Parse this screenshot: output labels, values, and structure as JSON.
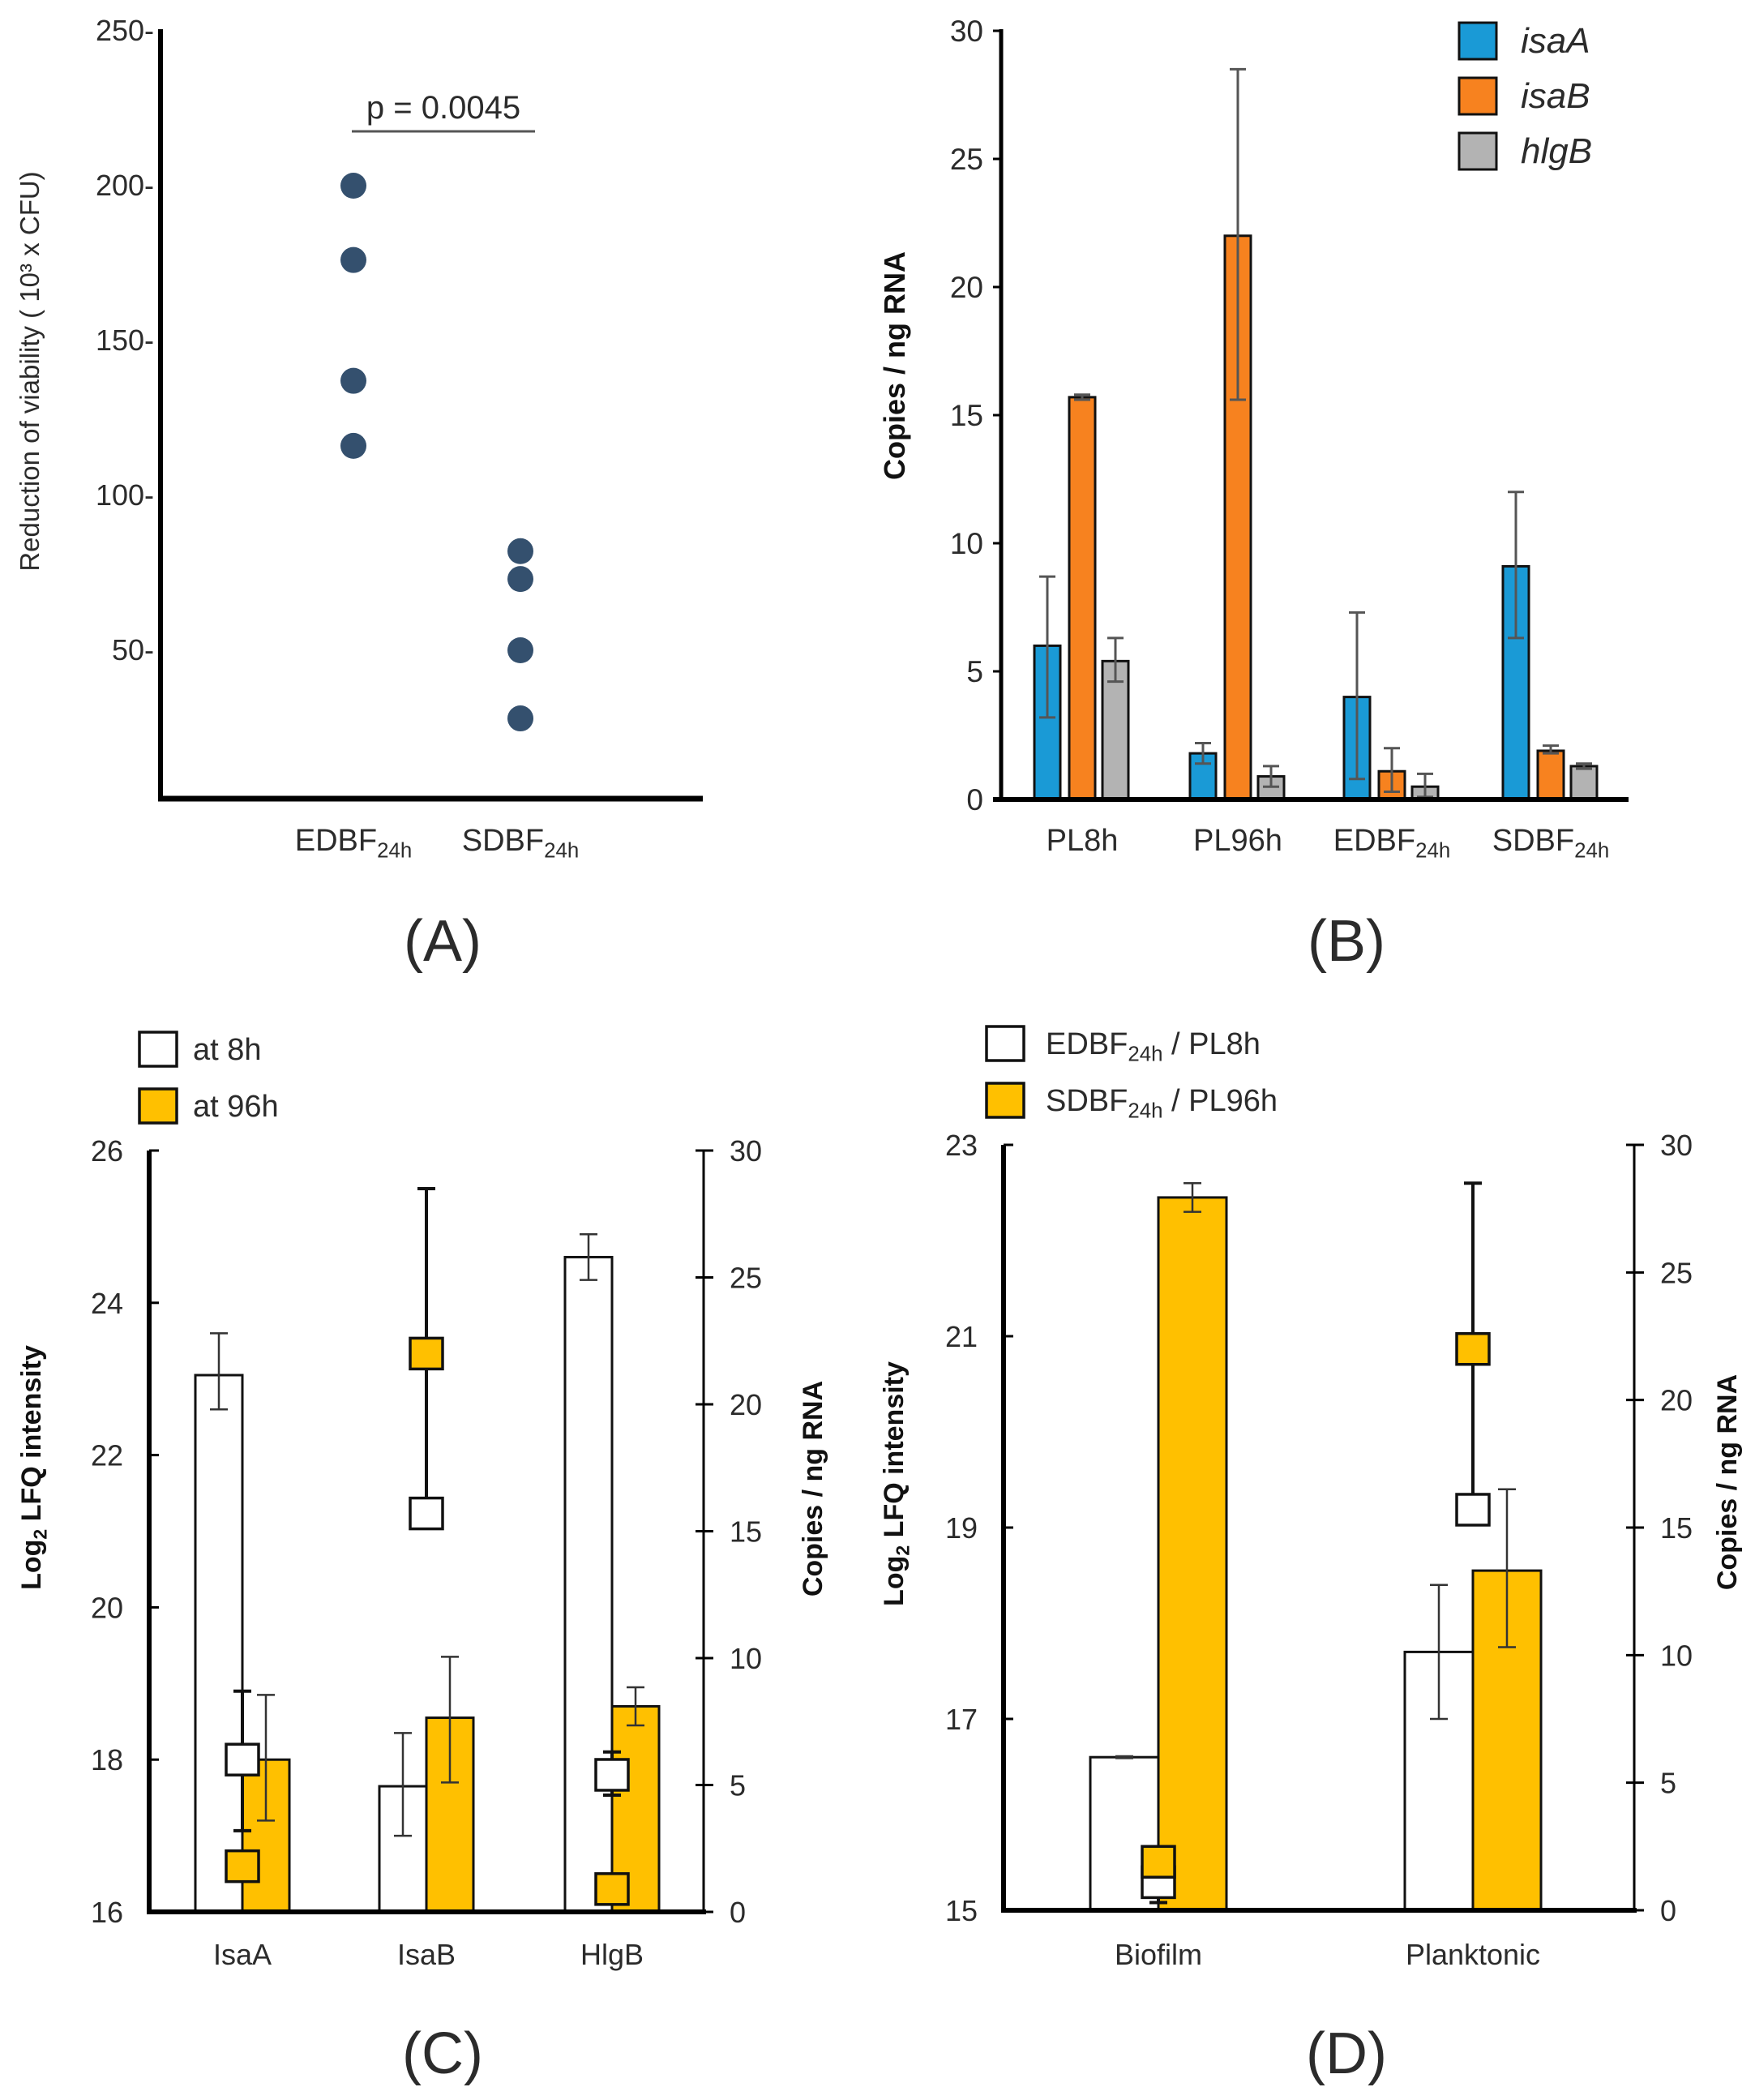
{
  "colors": {
    "dot": "#34506e",
    "isaA": "#1a9ad6",
    "isaB": "#f7821f",
    "hlgB": "#b3b3b3",
    "at8h": "#ffffff",
    "at96h": "#ffc000",
    "axis": "#000000",
    "errorbar": "#555555"
  },
  "chart_data": [
    {
      "id": "A",
      "type": "scatter",
      "panel_label": "(A)",
      "ylabel": [
        {
          "t": "Reduction of viability ( 10³ x CFU)"
        }
      ],
      "ylim": [
        0,
        250
      ],
      "yticks": [
        50,
        100,
        150,
        200,
        250
      ],
      "tick_suffix": "-",
      "categories": [
        [
          {
            "t": "EDBF"
          },
          {
            "t": "24h",
            "sub": true
          }
        ],
        [
          {
            "t": "SDBF"
          },
          {
            "t": "24h",
            "sub": true
          }
        ]
      ],
      "groups": [
        {
          "values": [
            200,
            176,
            137,
            116
          ]
        },
        {
          "values": [
            82,
            73,
            50,
            28
          ]
        }
      ],
      "annotation": {
        "text": "p = 0.0045",
        "between": [
          0,
          1
        ]
      }
    },
    {
      "id": "B",
      "type": "bar",
      "panel_label": "(B)",
      "ylabel": [
        {
          "t": "Copies / ng RNA"
        }
      ],
      "ylim": [
        0,
        30
      ],
      "yticks": [
        0,
        5,
        10,
        15,
        20,
        25,
        30
      ],
      "categories": [
        [
          {
            "t": "PL8h"
          }
        ],
        [
          {
            "t": "PL96h"
          }
        ],
        [
          {
            "t": "EDBF"
          },
          {
            "t": "24h",
            "sub": true
          }
        ],
        [
          {
            "t": "SDBF"
          },
          {
            "t": "24h",
            "sub": true
          }
        ]
      ],
      "legend_position": "top-right",
      "series": [
        {
          "name": "isaA",
          "color_key": "isaA",
          "values": [
            6.0,
            1.8,
            4.0,
            9.1
          ],
          "err": [
            [
              3.2,
              8.7
            ],
            [
              1.4,
              2.2
            ],
            [
              0.8,
              7.3
            ],
            [
              6.3,
              12.0
            ]
          ]
        },
        {
          "name": "isaB",
          "color_key": "isaB",
          "values": [
            15.7,
            22.0,
            1.1,
            1.9
          ],
          "err": [
            [
              15.6,
              15.8
            ],
            [
              15.6,
              28.5
            ],
            [
              0.3,
              2.0
            ],
            [
              1.8,
              2.1
            ]
          ]
        },
        {
          "name": "hlgB",
          "color_key": "hlgB",
          "values": [
            5.4,
            0.9,
            0.5,
            1.3
          ],
          "err": [
            [
              4.6,
              6.3
            ],
            [
              0.5,
              1.3
            ],
            [
              0.1,
              1.0
            ],
            [
              1.2,
              1.4
            ]
          ]
        }
      ]
    },
    {
      "id": "C",
      "type": "bar",
      "panel_label": "(C)",
      "ylabel": [
        {
          "t": "Log"
        },
        {
          "t": "2",
          "sub": true
        },
        {
          "t": " LFQ intensity"
        }
      ],
      "ylabel_right": [
        {
          "t": "Copies / ng RNA"
        }
      ],
      "ylim": [
        16,
        26
      ],
      "yticks": [
        16,
        18,
        20,
        22,
        24,
        26
      ],
      "ylim_right": [
        0,
        30
      ],
      "yticks_right": [
        0,
        5,
        10,
        15,
        20,
        25,
        30
      ],
      "categories": [
        [
          {
            "t": "IsaA"
          }
        ],
        [
          {
            "t": "IsaB"
          }
        ],
        [
          {
            "t": "HlgB"
          }
        ]
      ],
      "legend_position": "top-left",
      "legend": [
        {
          "label": [
            {
              "t": "at 8h"
            }
          ],
          "color_key": "at8h"
        },
        {
          "label": [
            {
              "t": "at 96h"
            }
          ],
          "color_key": "at96h"
        }
      ],
      "series": [
        {
          "name": "at 8h (LFQ, bars, left axis)",
          "color_key": "at8h",
          "values": [
            23.05,
            17.65,
            24.6
          ],
          "err": [
            [
              22.6,
              23.6
            ],
            [
              17.0,
              18.35
            ],
            [
              24.3,
              24.9
            ]
          ]
        },
        {
          "name": "at 96h (LFQ, bars, left axis)",
          "color_key": "at96h",
          "values": [
            18.0,
            18.55,
            18.7
          ],
          "err": [
            [
              17.2,
              18.85
            ],
            [
              17.7,
              19.35
            ],
            [
              18.45,
              18.95
            ]
          ]
        }
      ],
      "markers": [
        {
          "name": "at 8h (copies, squares, right axis)",
          "color_key": "at8h",
          "values": [
            6.0,
            15.7,
            5.4
          ],
          "err": [
            [
              3.2,
              8.7
            ],
            [
              15.6,
              15.8
            ],
            [
              4.6,
              6.3
            ]
          ]
        },
        {
          "name": "at 96h (copies, squares, right axis)",
          "color_key": "at96h",
          "values": [
            1.8,
            22.0,
            0.9
          ],
          "err": [
            [
              1.4,
              2.2
            ],
            [
              15.6,
              28.5
            ],
            [
              0.5,
              1.3
            ]
          ]
        }
      ]
    },
    {
      "id": "D",
      "type": "bar",
      "panel_label": "(D)",
      "ylabel": [
        {
          "t": "Log"
        },
        {
          "t": "2",
          "sub": true
        },
        {
          "t": " LFQ intensity"
        }
      ],
      "ylabel_right": [
        {
          "t": "Copies / ng RNA"
        }
      ],
      "ylim": [
        15,
        23
      ],
      "yticks": [
        15,
        17,
        19,
        21,
        23
      ],
      "ylim_right": [
        0,
        30
      ],
      "yticks_right": [
        0,
        5,
        10,
        15,
        20,
        25,
        30
      ],
      "categories": [
        [
          {
            "t": "Biofilm"
          }
        ],
        [
          {
            "t": "Planktonic"
          }
        ]
      ],
      "legend_position": "top-left",
      "legend": [
        {
          "label": [
            {
              "t": "EDBF"
            },
            {
              "t": "24h",
              "sub": true
            },
            {
              "t": " / PL8h"
            }
          ],
          "color_key": "at8h"
        },
        {
          "label": [
            {
              "t": "SDBF"
            },
            {
              "t": "24h",
              "sub": true
            },
            {
              "t": " / PL96h"
            }
          ],
          "color_key": "at96h"
        }
      ],
      "series": [
        {
          "name": "EDBF24h / PL8h (LFQ, bars, left axis)",
          "color_key": "at8h",
          "values": [
            16.6,
            17.7
          ],
          "err": [
            [
              16.59,
              16.61
            ],
            [
              17.0,
              18.4
            ]
          ]
        },
        {
          "name": "SDBF24h / PL96h (LFQ, bars, left axis)",
          "color_key": "at96h",
          "values": [
            22.45,
            18.55
          ],
          "err": [
            [
              22.3,
              22.6
            ],
            [
              17.75,
              19.4
            ]
          ]
        }
      ],
      "markers": [
        {
          "name": "EDBF24h / PL8h (copies, squares, right axis)",
          "color_key": "at8h",
          "values": [
            1.1,
            15.7
          ],
          "err": [
            [
              0.3,
              1.1
            ],
            [
              15.6,
              15.8
            ]
          ]
        },
        {
          "name": "SDBF24h / PL96h (copies, squares, right axis)",
          "color_key": "at96h",
          "values": [
            1.9,
            22.0
          ],
          "err": [
            [
              1.8,
              2.1
            ],
            [
              15.6,
              28.5
            ]
          ]
        }
      ]
    }
  ]
}
